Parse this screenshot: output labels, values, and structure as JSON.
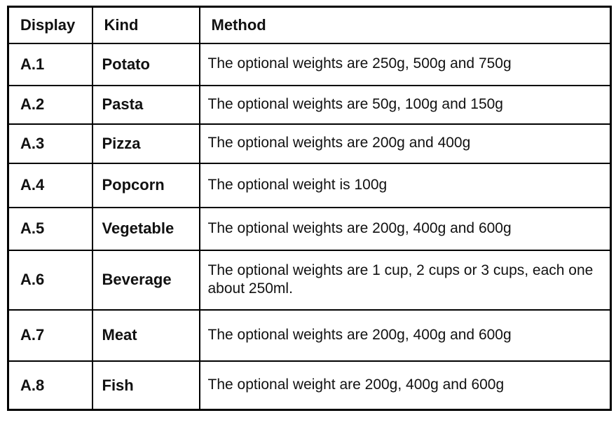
{
  "document": {
    "colors": {
      "background": "#ffffff",
      "border": "#000000",
      "text": "#111111"
    },
    "table": {
      "headers": {
        "display": "Display",
        "kind": "Kind",
        "method": "Method"
      },
      "rows": [
        {
          "display": "A.1",
          "kind": "Potato",
          "method": "The optional weights are 250g, 500g and 750g"
        },
        {
          "display": "A.2",
          "kind": "Pasta",
          "method": "The optional weights are 50g, 100g and 150g"
        },
        {
          "display": "A.3",
          "kind": "Pizza",
          "method": "The optional weights are 200g and 400g"
        },
        {
          "display": "A.4",
          "kind": "Popcorn",
          "method": "The optional weight is 100g"
        },
        {
          "display": "A.5",
          "kind": "Vegetable",
          "method": "The optional weights are 200g, 400g and 600g"
        },
        {
          "display": "A.6",
          "kind": "Beverage",
          "method": "The optional weights are 1 cup, 2 cups or 3 cups, each one about 250ml."
        },
        {
          "display": "A.7",
          "kind": "Meat",
          "method": "The optional weights are 200g, 400g and 600g"
        },
        {
          "display": "A.8",
          "kind": "Fish",
          "method": "The optional weight are 200g, 400g and 600g"
        }
      ]
    }
  }
}
